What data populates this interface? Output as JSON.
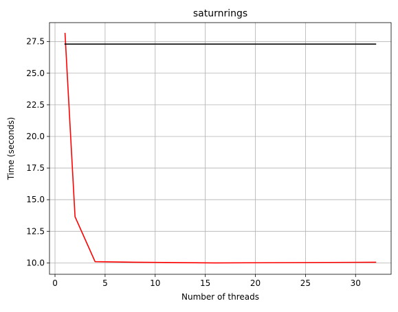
{
  "chart_data": {
    "type": "line",
    "title": "saturnrings",
    "xlabel": "Number of threads",
    "ylabel": "Time (seconds)",
    "xlim": [
      -0.55,
      33.55
    ],
    "ylim": [
      9.1,
      29.0
    ],
    "xticks": [
      0,
      5,
      10,
      15,
      20,
      25,
      30
    ],
    "yticks": [
      10.0,
      12.5,
      15.0,
      17.5,
      20.0,
      22.5,
      25.0,
      27.5
    ],
    "xtick_labels": [
      "0",
      "5",
      "10",
      "15",
      "20",
      "25",
      "30"
    ],
    "ytick_labels": [
      "10.0",
      "12.5",
      "15.0",
      "17.5",
      "20.0",
      "22.5",
      "25.0",
      "27.5"
    ],
    "grid": true,
    "series": [
      {
        "color": "#ff0000",
        "x": [
          1,
          2,
          4,
          8,
          16,
          32
        ],
        "y": [
          28.15,
          13.65,
          10.1,
          10.05,
          10.0,
          10.05
        ]
      },
      {
        "color": "#000000",
        "x": [
          1,
          32
        ],
        "y": [
          27.3,
          27.3
        ]
      }
    ]
  }
}
